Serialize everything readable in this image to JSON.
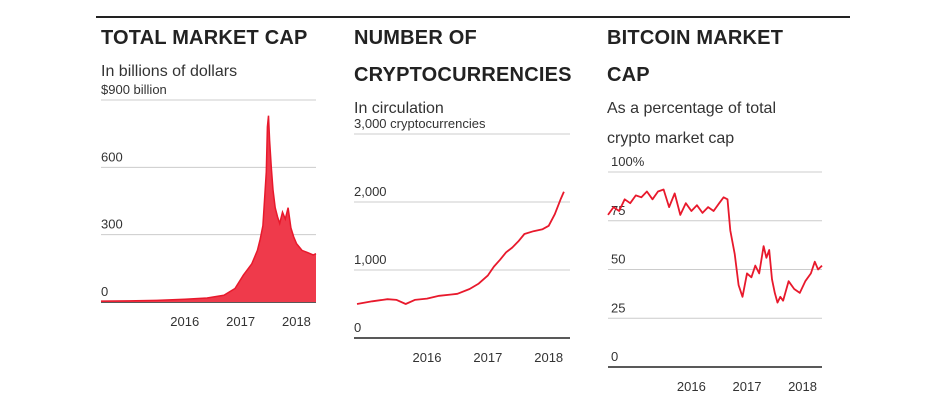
{
  "colors": {
    "accent": "#e8192c",
    "area_fill": "#ef3a4b",
    "grid": "#cccccc",
    "axis": "#222222"
  },
  "chart_data": [
    {
      "type": "area",
      "title": "TOTAL MARKET CAP",
      "subtitle": "In billions of dollars",
      "ylabel": "",
      "xlabel": "",
      "xlim": [
        2015.0,
        2018.85
      ],
      "ylim": [
        0,
        900
      ],
      "yticks": [
        0,
        300,
        600,
        900
      ],
      "ytick_labels": [
        "0",
        "300",
        "600",
        "$900 billion"
      ],
      "xticks": [
        2016,
        2017,
        2018
      ],
      "xtick_labels": [
        "2016",
        "2017",
        "2018"
      ],
      "x": [
        2015.0,
        2015.5,
        2016.0,
        2016.5,
        2016.9,
        2017.2,
        2017.4,
        2017.55,
        2017.7,
        2017.8,
        2017.85,
        2017.9,
        2017.93,
        2017.96,
        2017.98,
        2018.0,
        2018.02,
        2018.05,
        2018.08,
        2018.12,
        2018.16,
        2018.2,
        2018.25,
        2018.3,
        2018.35,
        2018.4,
        2018.45,
        2018.5,
        2018.6,
        2018.7,
        2018.8,
        2018.85
      ],
      "values": [
        4,
        5,
        7,
        12,
        18,
        30,
        60,
        120,
        170,
        230,
        280,
        340,
        460,
        580,
        780,
        830,
        720,
        600,
        500,
        420,
        380,
        350,
        400,
        370,
        420,
        330,
        290,
        260,
        230,
        220,
        210,
        215
      ]
    },
    {
      "type": "line",
      "title": "NUMBER OF CRYPTOCURRENCIES",
      "subtitle": "In circulation",
      "ylabel": "",
      "xlabel": "",
      "xlim": [
        2015.3,
        2018.85
      ],
      "ylim": [
        0,
        3000
      ],
      "yticks": [
        0,
        1000,
        2000,
        3000
      ],
      "ytick_labels": [
        "0",
        "1,000",
        "2,000",
        "3,000 cryptocurrencies"
      ],
      "xticks": [
        2016,
        2017,
        2018
      ],
      "xtick_labels": [
        "2016",
        "2017",
        "2018"
      ],
      "x": [
        2015.35,
        2015.6,
        2015.85,
        2016.0,
        2016.15,
        2016.3,
        2016.5,
        2016.7,
        2016.9,
        2017.0,
        2017.2,
        2017.35,
        2017.5,
        2017.6,
        2017.7,
        2017.8,
        2017.9,
        2018.0,
        2018.1,
        2018.25,
        2018.4,
        2018.5,
        2018.6,
        2018.7,
        2018.75
      ],
      "values": [
        500,
        540,
        570,
        560,
        500,
        560,
        580,
        620,
        640,
        650,
        720,
        800,
        920,
        1050,
        1150,
        1260,
        1330,
        1420,
        1530,
        1570,
        1600,
        1650,
        1820,
        2050,
        2150
      ]
    },
    {
      "type": "line",
      "title": "BITCOIN MARKET CAP",
      "subtitle": "As a percentage of total crypto market cap",
      "ylabel": "",
      "xlabel": "",
      "xlim": [
        2015.0,
        2018.85
      ],
      "ylim": [
        0,
        100
      ],
      "yticks": [
        0,
        25,
        50,
        75,
        100
      ],
      "ytick_labels": [
        "0",
        "25",
        "50",
        "75",
        "100%"
      ],
      "xticks": [
        2016,
        2017,
        2018
      ],
      "xtick_labels": [
        "2016",
        "2017",
        "2018"
      ],
      "x": [
        2015.0,
        2015.1,
        2015.2,
        2015.3,
        2015.4,
        2015.5,
        2015.6,
        2015.7,
        2015.8,
        2015.9,
        2016.0,
        2016.1,
        2016.2,
        2016.3,
        2016.4,
        2016.5,
        2016.6,
        2016.7,
        2016.8,
        2016.9,
        2017.0,
        2017.08,
        2017.15,
        2017.2,
        2017.28,
        2017.35,
        2017.42,
        2017.5,
        2017.58,
        2017.65,
        2017.72,
        2017.8,
        2017.85,
        2017.9,
        2017.95,
        2018.0,
        2018.05,
        2018.1,
        2018.15,
        2018.25,
        2018.35,
        2018.45,
        2018.55,
        2018.65,
        2018.72,
        2018.78,
        2018.85
      ],
      "values": [
        78,
        82,
        80,
        86,
        84,
        88,
        87,
        90,
        86,
        90,
        91,
        82,
        89,
        78,
        84,
        80,
        83,
        79,
        82,
        80,
        84,
        87,
        86,
        70,
        58,
        42,
        36,
        48,
        46,
        52,
        48,
        62,
        56,
        60,
        45,
        38,
        33,
        36,
        34,
        44,
        40,
        38,
        44,
        48,
        54,
        50,
        52
      ]
    }
  ]
}
